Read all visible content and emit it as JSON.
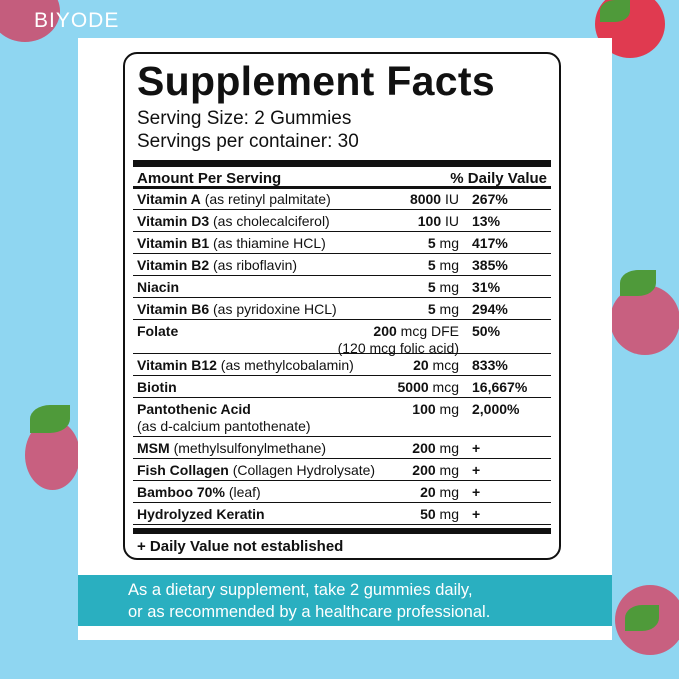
{
  "brand": "BIYODE",
  "panel": {
    "title": "Supplement Facts",
    "serving_size": "Serving Size: 2 Gummies",
    "servings_per_container": "Servings per container: 30",
    "header": {
      "amount": "Amount Per Serving",
      "daily_value": "% Daily Value"
    },
    "rows": [
      {
        "name": "Vitamin A",
        "qualifier": "(as retinyl palmitate)",
        "amount": "8000",
        "unit": "IU",
        "daily_value": "267%"
      },
      {
        "name": "Vitamin D3",
        "qualifier": "(as cholecalciferol)",
        "amount": "100",
        "unit": "IU",
        "daily_value": "13%"
      },
      {
        "name": "Vitamin B1",
        "qualifier": "(as thiamine HCL)",
        "amount": "5",
        "unit": "mg",
        "daily_value": "417%"
      },
      {
        "name": "Vitamin B2",
        "qualifier": "(as riboflavin)",
        "amount": "5",
        "unit": "mg",
        "daily_value": "385%"
      },
      {
        "name": "Niacin",
        "amount": "5",
        "unit": "mg",
        "daily_value": "31%"
      },
      {
        "name": "Vitamin B6",
        "qualifier": "(as pyridoxine HCL)",
        "amount": "5",
        "unit": "mg",
        "daily_value": "294%"
      },
      {
        "name": "Folate",
        "amount": "200",
        "unit": "mcg DFE",
        "amount_note": "(120 mcg folic acid)",
        "daily_value": "50%"
      },
      {
        "name": "Vitamin B12",
        "qualifier": "(as methylcobalamin)",
        "amount": "20",
        "unit": "mcg",
        "daily_value": "833%"
      },
      {
        "name": "Biotin",
        "amount": "5000",
        "unit": "mcg",
        "daily_value": "16,667%"
      },
      {
        "name": "Pantothenic Acid",
        "subline": "(as d-calcium pantothenate)",
        "amount": "100",
        "unit": "mg",
        "daily_value": "2,000%"
      },
      {
        "name": "MSM",
        "qualifier": "(methylsulfonylmethane)",
        "amount": "200",
        "unit": "mg",
        "daily_value": "+"
      },
      {
        "name": "Fish Collagen",
        "qualifier": "(Collagen Hydrolysate)",
        "amount": "200",
        "unit": "mg",
        "daily_value": "+"
      },
      {
        "name": "Bamboo 70%",
        "qualifier": "(leaf)",
        "amount": "20",
        "unit": "mg",
        "daily_value": "+"
      },
      {
        "name": "Hydrolyzed Keratin",
        "amount": "50",
        "unit": "mg",
        "daily_value": "+"
      }
    ],
    "footnote": "+ Daily Value not established"
  },
  "directions": [
    "As a dietary supplement, take 2 gummies daily,",
    "or as recommended by a healthcare professional."
  ]
}
